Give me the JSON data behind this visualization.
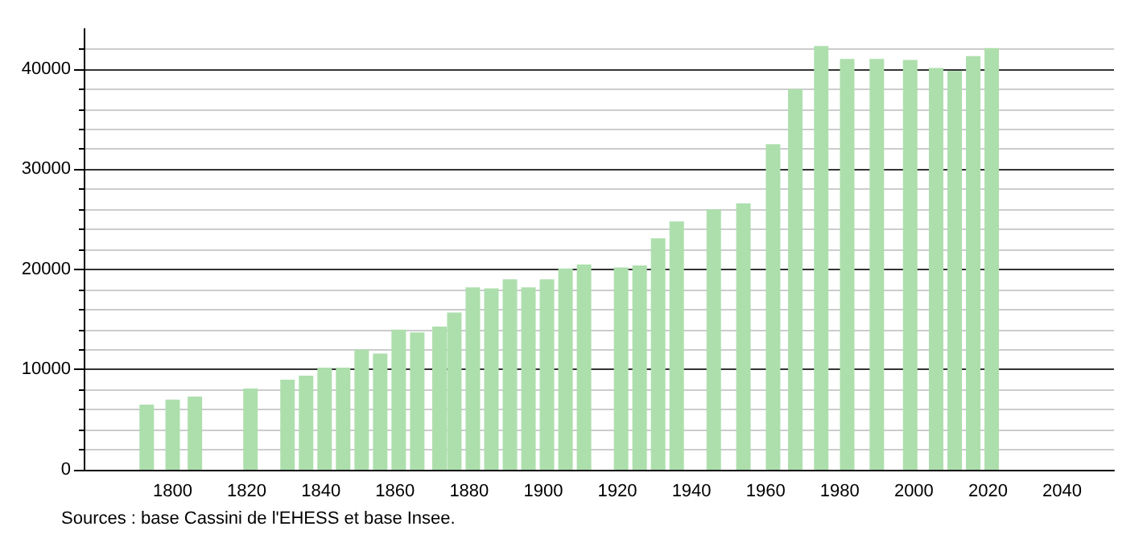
{
  "chart_data": {
    "type": "bar",
    "x": [
      1793,
      1800,
      1806,
      1821,
      1831,
      1836,
      1841,
      1846,
      1851,
      1856,
      1861,
      1866,
      1872,
      1876,
      1881,
      1886,
      1891,
      1896,
      1901,
      1906,
      1911,
      1921,
      1926,
      1931,
      1936,
      1946,
      1954,
      1962,
      1968,
      1975,
      1982,
      1990,
      1999,
      2006,
      2011,
      2016,
      2021
    ],
    "values": [
      6500,
      7000,
      7300,
      8100,
      9000,
      9400,
      10200,
      10200,
      12000,
      11600,
      14000,
      13700,
      14300,
      15700,
      18200,
      18100,
      19000,
      18200,
      19000,
      20100,
      20500,
      20200,
      20400,
      23100,
      24800,
      26000,
      26600,
      32500,
      38000,
      42300,
      41000,
      41000,
      40900,
      40100,
      39800,
      41300,
      42100
    ],
    "color": "#addfad",
    "xlim": [
      1776,
      2054
    ],
    "xticks": [
      1800,
      1820,
      1840,
      1860,
      1880,
      1900,
      1920,
      1940,
      1960,
      1980,
      2000,
      2020,
      2040
    ],
    "ylim": [
      0,
      44000
    ],
    "yticks": [
      0,
      10000,
      20000,
      30000,
      40000
    ],
    "grid": "y",
    "annotations": [
      "Sources : base Cassini de l'EHESS et base Insee."
    ]
  }
}
